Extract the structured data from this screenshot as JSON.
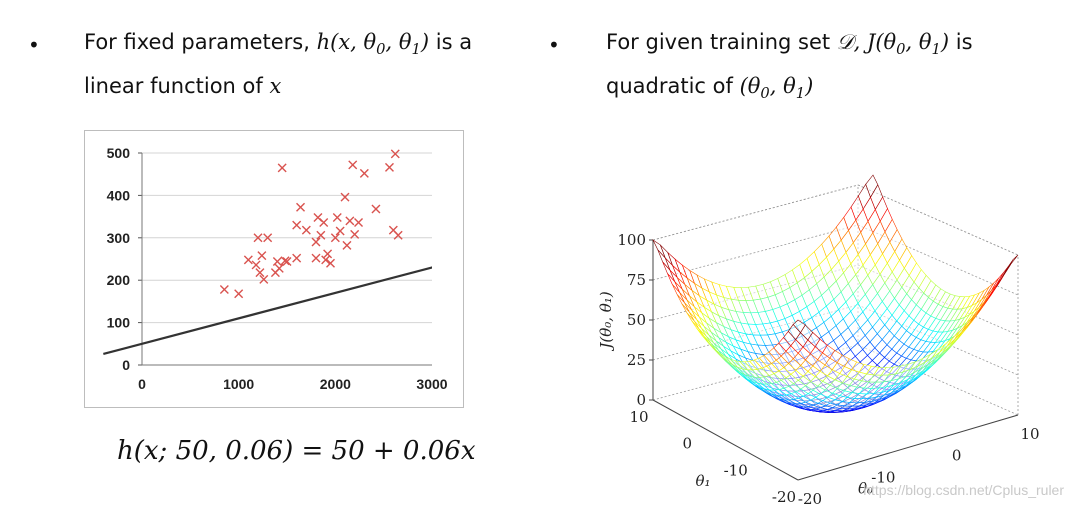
{
  "left_bullet": {
    "dot": "•",
    "text_prefix": "For fixed parameters,",
    "formula_h": "h",
    "formula_args": "(x, θ",
    "sub0": "0",
    "comma": ", θ",
    "sub1": "1",
    "close": ")",
    "text_mid": "is a",
    "text_line2": "linear function of",
    "var_x": "x"
  },
  "right_bullet": {
    "dot": "•",
    "text_prefix": "For given training set",
    "set_symbol": "𝒟",
    "formula_j": ", J(θ",
    "sub0": "0",
    "comma": ", θ",
    "sub1": "1",
    "close": ")",
    "text_mid": "is",
    "text_line2": "quadratic of",
    "theta_open": "(θ",
    "theta_sep": ", θ",
    "theta_close": ")"
  },
  "equation": "h(x; 50, 0.06) = 50 + 0.06x",
  "watermark": "https://blog.csdn.net/Cplus_ruler",
  "chart_data": [
    {
      "type": "scatter",
      "x_ticks": [
        0,
        1000,
        2000,
        3000
      ],
      "y_ticks": [
        0,
        100,
        200,
        300,
        400,
        500
      ],
      "xlim": [
        0,
        3000
      ],
      "ylim": [
        0,
        500
      ],
      "grid": true,
      "marker": "x",
      "marker_color": "#d9534f",
      "line_color": "#333333",
      "points": [
        [
          852,
          178
        ],
        [
          1000,
          168
        ],
        [
          1100,
          248
        ],
        [
          1180,
          236
        ],
        [
          1200,
          300
        ],
        [
          1220,
          218
        ],
        [
          1240,
          258
        ],
        [
          1260,
          202
        ],
        [
          1300,
          300
        ],
        [
          1380,
          218
        ],
        [
          1400,
          244
        ],
        [
          1420,
          228
        ],
        [
          1450,
          465
        ],
        [
          1480,
          246
        ],
        [
          1500,
          244
        ],
        [
          1600,
          252
        ],
        [
          1600,
          330
        ],
        [
          1640,
          372
        ],
        [
          1700,
          318
        ],
        [
          1800,
          252
        ],
        [
          1800,
          290
        ],
        [
          1820,
          348
        ],
        [
          1850,
          306
        ],
        [
          1880,
          336
        ],
        [
          1900,
          248
        ],
        [
          1920,
          262
        ],
        [
          1950,
          240
        ],
        [
          2000,
          300
        ],
        [
          2020,
          348
        ],
        [
          2050,
          316
        ],
        [
          2100,
          396
        ],
        [
          2120,
          282
        ],
        [
          2150,
          340
        ],
        [
          2180,
          472
        ],
        [
          2200,
          308
        ],
        [
          2240,
          336
        ],
        [
          2300,
          452
        ],
        [
          2420,
          368
        ],
        [
          2560,
          466
        ],
        [
          2620,
          498
        ],
        [
          2600,
          318
        ],
        [
          2650,
          306
        ]
      ],
      "line": {
        "intercept": 50,
        "slope": 0.06,
        "x_range": [
          -400,
          3200
        ]
      }
    },
    {
      "type": "surface",
      "zlabel": "J(θ₀, θ₁)",
      "xlabel": "θ₀",
      "ylabel": "θ₁",
      "z_ticks": [
        0,
        25,
        50,
        75,
        100
      ],
      "theta0_ticks": [
        -20,
        -10,
        0,
        10
      ],
      "theta1_ticks": [
        -20,
        -10,
        0,
        10
      ],
      "theta0_range": [
        -20,
        10
      ],
      "theta1_range": [
        -20,
        10
      ],
      "zlim": [
        0,
        100
      ],
      "colormap": "jet"
    }
  ]
}
